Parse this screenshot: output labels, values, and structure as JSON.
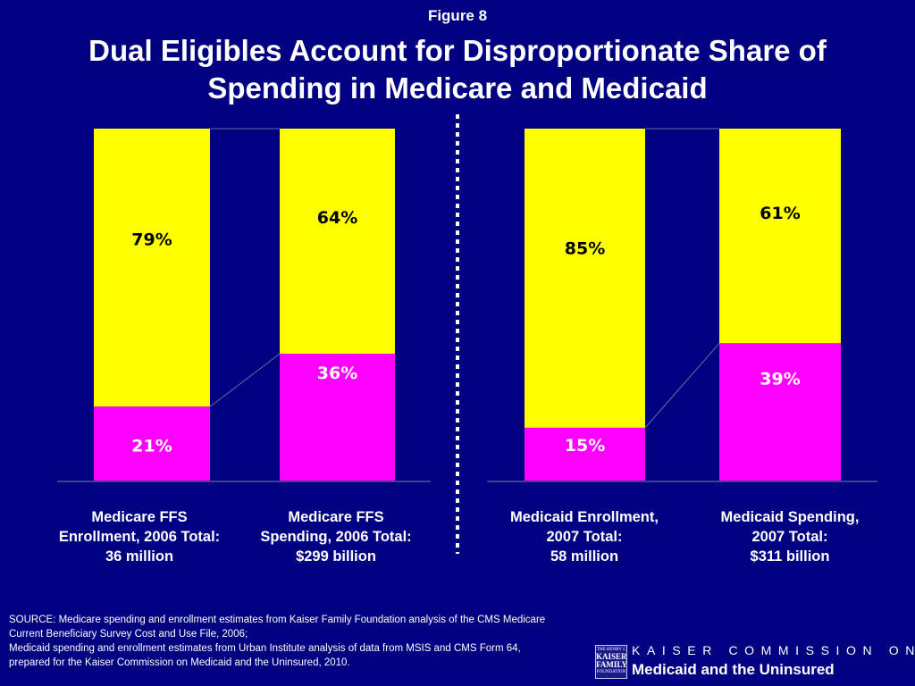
{
  "figure_label": "Figure 8",
  "title_lines": [
    "Dual Eligibles Account for Disproportionate Share of",
    "Spending in Medicare and Medicaid"
  ],
  "colors": {
    "background": "#000080",
    "dual_eligibles": "#ff00ff",
    "others": "#ffff00",
    "text": "#ffffff"
  },
  "chart_data": {
    "type": "bar",
    "stacked": true,
    "ylim": [
      0,
      100
    ],
    "categories": [
      [
        "Medicare FFS",
        "Enrollment, 2006 Total:",
        "36 million"
      ],
      [
        "Medicare FFS",
        "Spending, 2006 Total:",
        "$299 billion"
      ],
      [
        "Medicaid Enrollment,",
        "2007 Total:",
        "58 million"
      ],
      [
        "Medicaid Spending,",
        "2007 Total:",
        "$311 billion"
      ]
    ],
    "series": [
      {
        "values": [
          21,
          36,
          15,
          39
        ],
        "labels": [
          "21%",
          "36%",
          "15%",
          "39%"
        ],
        "color": "#ff00ff"
      },
      {
        "values": [
          79,
          64,
          85,
          61
        ],
        "labels": [
          "79%",
          "64%",
          "85%",
          "61%"
        ],
        "color": "#ffff00"
      }
    ],
    "groups": [
      [
        0,
        1
      ],
      [
        2,
        3
      ]
    ],
    "connectors": "between bars within each group"
  },
  "source_lines": [
    "SOURCE: Medicare spending and enrollment estimates from Kaiser Family Foundation analysis of the CMS Medicare",
    "Current Beneficiary Survey Cost and Use File, 2006;",
    "Medicaid spending and enrollment estimates from Urban Institute analysis of data from MSIS and CMS Form 64,",
    "prepared for the Kaiser Commission on Medicaid and the Uninsured, 2010."
  ],
  "logo": {
    "line1": "THE HENRY J.",
    "line2a": "KAISER",
    "line2b": "FAMILY",
    "line3": "FOUNDATION"
  },
  "organization": {
    "line1": "KAISER COMMISSION ON",
    "line2": "Medicaid and the Uninsured"
  }
}
